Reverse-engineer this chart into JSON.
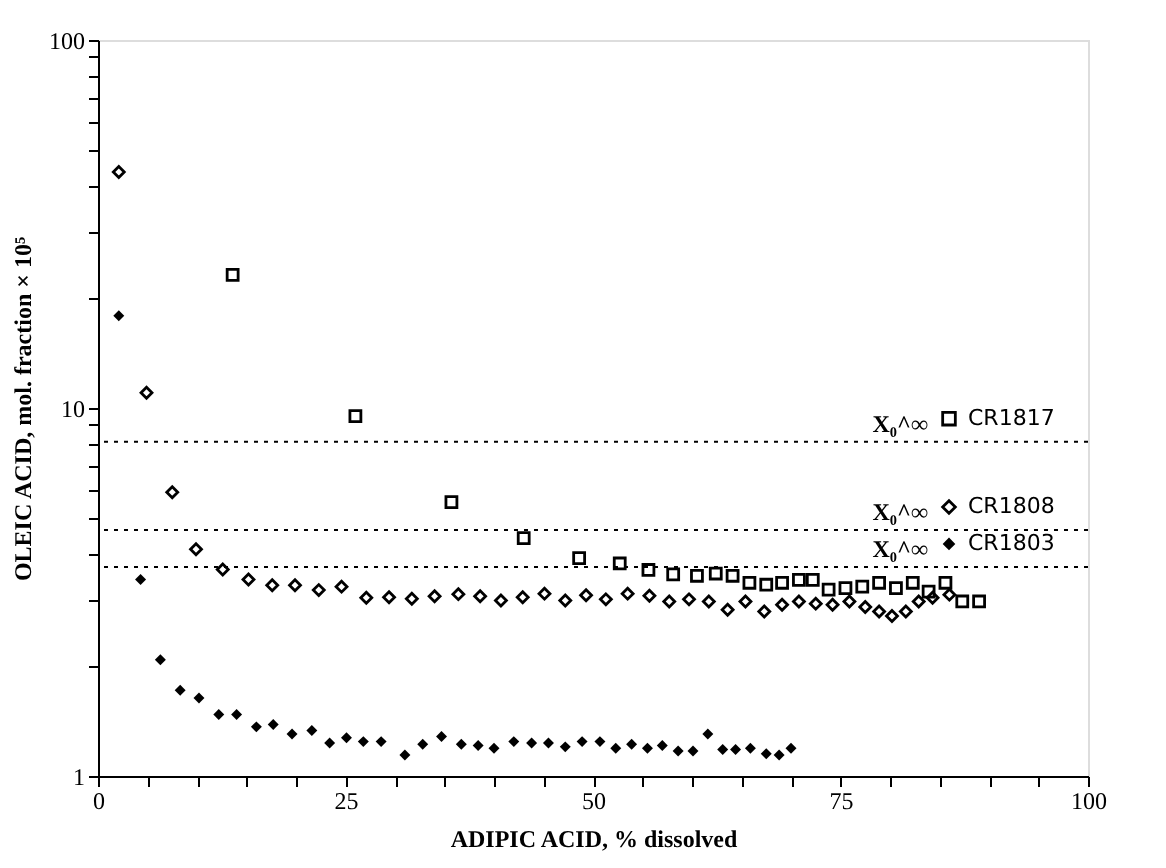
{
  "chart_data": {
    "type": "scatter",
    "xlabel": "ADIPIC ACID, % dissolved",
    "ylabel": "OLEIC ACID, mol. fraction × 10⁵",
    "log": "y",
    "grid": false,
    "legend": "right",
    "xlim": [
      0,
      100
    ],
    "xticks": [
      0,
      {
        "value": 5,
        "label": null
      },
      {
        "value": 10,
        "label": null
      },
      {
        "value": 15,
        "label": null
      },
      {
        "value": 20,
        "label": null
      },
      25,
      {
        "value": 30,
        "label": null
      },
      {
        "value": 35,
        "label": null
      },
      {
        "value": 40,
        "label": null
      },
      {
        "value": 45,
        "label": null
      },
      50,
      {
        "value": 55,
        "label": null
      },
      {
        "value": 60,
        "label": null
      },
      {
        "value": 65,
        "label": null
      },
      {
        "value": 70,
        "label": null
      },
      75,
      {
        "value": 80,
        "label": null
      },
      {
        "value": 85,
        "label": null
      },
      {
        "value": 90,
        "label": null
      },
      {
        "value": 95,
        "label": null
      },
      100
    ],
    "ylim": [
      1,
      100
    ],
    "yticks": [
      1,
      {
        "value": 2,
        "label": null
      },
      {
        "value": 3,
        "label": null
      },
      {
        "value": 4,
        "label": null
      },
      {
        "value": 5,
        "label": null
      },
      {
        "value": 6,
        "label": null
      },
      {
        "value": 7,
        "label": null
      },
      {
        "value": 8,
        "label": null
      },
      {
        "value": 9,
        "label": null
      },
      10,
      {
        "value": 20,
        "label": null
      },
      {
        "value": 30,
        "label": null
      },
      {
        "value": 40,
        "label": null
      },
      {
        "value": 50,
        "label": null
      },
      {
        "value": 60,
        "label": null
      },
      {
        "value": 70,
        "label": null
      },
      {
        "value": 80,
        "label": null
      },
      {
        "value": 90,
        "label": null
      },
      100
    ],
    "series": [
      {
        "name": "CR1817",
        "color": "#000000",
        "marker": "square",
        "x": [
          13.6,
          26.0,
          35.7,
          43.0,
          48.6,
          52.7,
          55.6,
          58.1,
          60.5,
          62.4,
          64.1,
          65.8,
          67.5,
          69.1,
          70.8,
          72.2,
          73.8,
          75.5,
          77.2,
          78.9,
          80.6,
          82.3,
          83.9,
          85.6,
          87.3,
          89.0
        ],
        "values": [
          23.0,
          9.5,
          5.55,
          4.43,
          3.91,
          3.78,
          3.63,
          3.53,
          3.5,
          3.55,
          3.5,
          3.35,
          3.31,
          3.35,
          3.41,
          3.41,
          3.21,
          3.24,
          3.27,
          3.35,
          3.24,
          3.35,
          3.17,
          3.35,
          2.98,
          2.98
        ]
      },
      {
        "name": "CR1808",
        "color": "#000000",
        "marker": "diamond",
        "x": [
          2.1,
          4.9,
          7.5,
          9.9,
          12.6,
          15.2,
          17.6,
          19.9,
          22.3,
          24.6,
          27.1,
          29.4,
          31.7,
          34.0,
          36.4,
          38.6,
          40.7,
          42.9,
          45.1,
          47.2,
          49.3,
          51.3,
          53.5,
          55.7,
          57.7,
          59.7,
          61.7,
          63.6,
          65.4,
          67.3,
          69.1,
          70.8,
          72.5,
          74.2,
          75.9,
          77.5,
          78.9,
          80.2,
          81.6,
          82.9,
          84.3,
          86.0
        ],
        "values": [
          43.8,
          11.0,
          5.9,
          4.13,
          3.64,
          3.42,
          3.3,
          3.3,
          3.2,
          3.27,
          3.05,
          3.06,
          3.03,
          3.08,
          3.12,
          3.08,
          3.0,
          3.06,
          3.13,
          3.0,
          3.1,
          3.02,
          3.13,
          3.09,
          2.98,
          3.02,
          2.98,
          2.83,
          2.98,
          2.8,
          2.92,
          2.98,
          2.94,
          2.92,
          2.98,
          2.88,
          2.8,
          2.72,
          2.8,
          2.98,
          3.05,
          3.11
        ]
      },
      {
        "name": "CR1803",
        "color": "#000000",
        "marker": "diamond",
        "x": [
          2.1,
          4.3,
          6.3,
          8.3,
          10.2,
          12.2,
          14.0,
          16.0,
          17.7,
          19.6,
          21.6,
          23.4,
          25.1,
          26.8,
          28.6,
          31.0,
          32.8,
          34.7,
          36.7,
          38.4,
          40.0,
          42.0,
          43.8,
          45.5,
          47.2,
          48.9,
          50.7,
          52.3,
          53.9,
          55.5,
          57.0,
          58.6,
          60.1,
          61.6,
          63.1,
          64.4,
          65.9,
          67.5,
          68.8,
          70.0
        ],
        "values": [
          17.8,
          3.42,
          2.07,
          1.71,
          1.63,
          1.47,
          1.47,
          1.36,
          1.38,
          1.3,
          1.33,
          1.23,
          1.27,
          1.24,
          1.24,
          1.14,
          1.22,
          1.28,
          1.22,
          1.21,
          1.19,
          1.24,
          1.23,
          1.23,
          1.2,
          1.24,
          1.24,
          1.19,
          1.22,
          1.19,
          1.21,
          1.17,
          1.17,
          1.3,
          1.18,
          1.18,
          1.19,
          1.15,
          1.14,
          1.19
        ]
      }
    ],
    "ref_lines": [
      {
        "axis": "y",
        "value": 8.1,
        "label": "X₀^∞",
        "color": "#000000",
        "line_style": "dotted"
      },
      {
        "axis": "y",
        "value": 4.66,
        "label": "X₀^∞",
        "color": "#000000",
        "line_style": "dotted"
      },
      {
        "axis": "y",
        "value": 3.7,
        "label": "X₀^∞",
        "color": "#000000",
        "line_style": "dotted"
      }
    ]
  }
}
